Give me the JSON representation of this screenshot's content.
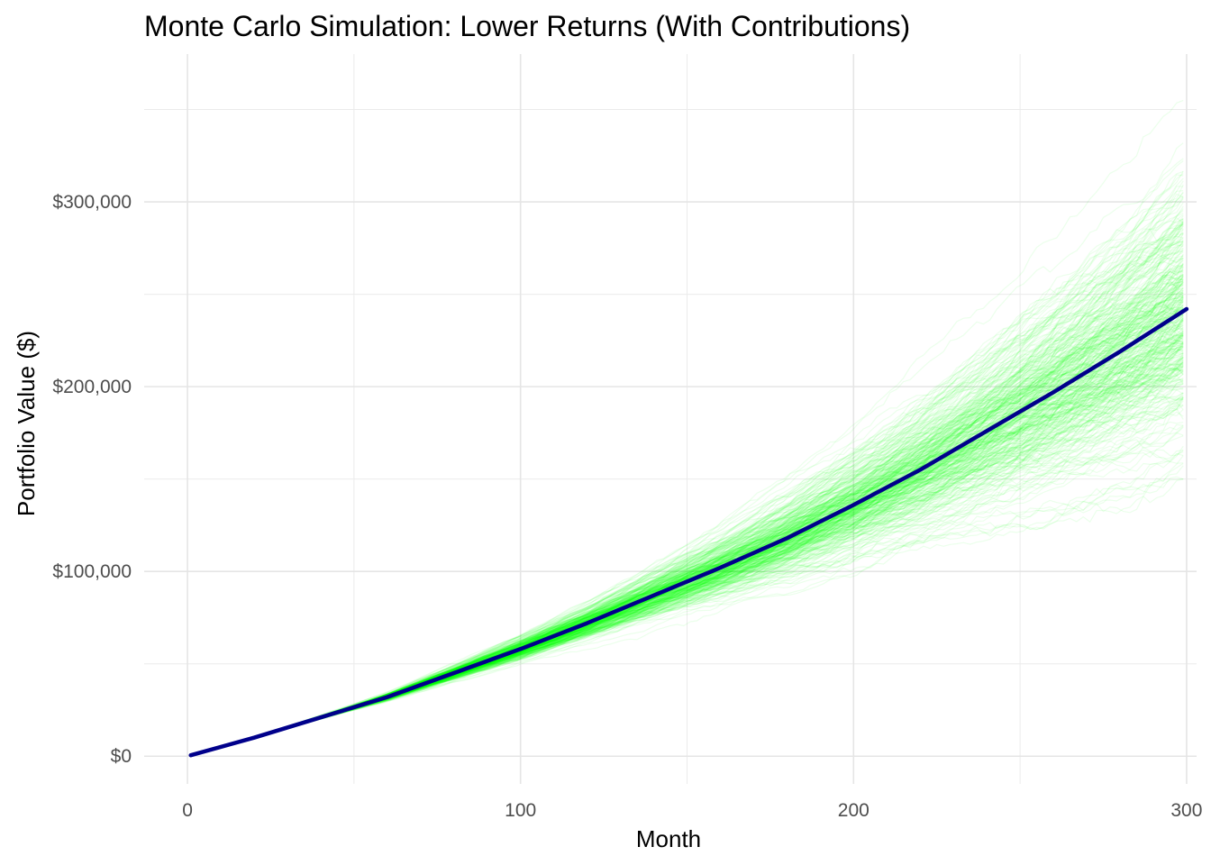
{
  "chart_data": {
    "type": "line",
    "title": "Monte Carlo Simulation: Lower Returns (With Contributions)",
    "xlabel": "Month",
    "ylabel": "Portfolio Value ($)",
    "xlim": [
      -13,
      303
    ],
    "ylim": [
      -15000,
      380000
    ],
    "x_ticks": [
      {
        "value": 0,
        "label": "0"
      },
      {
        "value": 100,
        "label": "100"
      },
      {
        "value": 200,
        "label": "200"
      },
      {
        "value": 300,
        "label": "300"
      }
    ],
    "x_minor_ticks": [
      50,
      150,
      250
    ],
    "y_ticks": [
      {
        "value": 0,
        "label": "$0"
      },
      {
        "value": 100000,
        "label": "$100,000"
      },
      {
        "value": 200000,
        "label": "$200,000"
      },
      {
        "value": 300000,
        "label": "$300,000"
      }
    ],
    "y_minor_ticks": [
      50000,
      150000,
      250000,
      350000
    ],
    "grid": true,
    "legend": "none",
    "simulation": {
      "months": 300,
      "paths_shown": 400,
      "color": "#00ff00",
      "opacity": 0.08,
      "final_value_range": [
        170000,
        360000
      ]
    },
    "series": [
      {
        "color": "#00008b",
        "x": [
          1,
          20,
          40,
          60,
          80,
          100,
          120,
          140,
          160,
          180,
          200,
          220,
          240,
          260,
          280,
          300
        ],
        "values": [
          500,
          10000,
          21000,
          32000,
          45000,
          58000,
          72000,
          87000,
          102000,
          118000,
          136000,
          155000,
          176000,
          197000,
          219000,
          242000
        ]
      }
    ]
  }
}
